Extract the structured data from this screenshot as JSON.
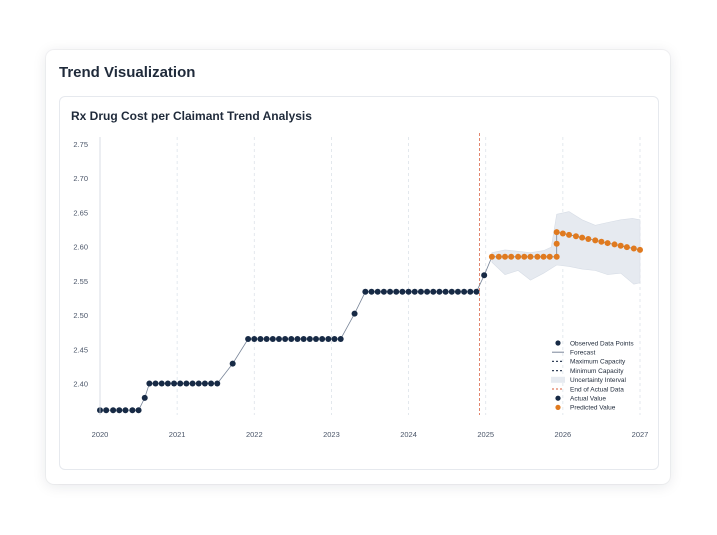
{
  "section_title": "Trend Visualization",
  "chart_data": {
    "type": "line",
    "title": "Rx Drug Cost per Claimant Trend Analysis",
    "xlabel": "",
    "ylabel": "",
    "xlim": [
      2020.0,
      2027.0
    ],
    "ylim": [
      2.355,
      2.755
    ],
    "x_ticks": [
      "2020",
      "2021",
      "2022",
      "2023",
      "2024",
      "2025",
      "2026",
      "2027"
    ],
    "y_ticks": [
      "2.40",
      "2.45",
      "2.50",
      "2.55",
      "2.60",
      "2.65",
      "2.70",
      "2.75"
    ],
    "end_of_actual_x": 2024.92,
    "grid": "vertical dashed",
    "legend_position": "bottom-right",
    "colors": {
      "observed": "#172a45",
      "predicted": "#e07a1f",
      "line": "#7a8699",
      "end_line": "#e07a5f",
      "band": "#e6eaf0"
    },
    "legend": [
      {
        "label": "Observed Data Points",
        "kind": "dot-dark"
      },
      {
        "label": "Forecast",
        "kind": "line"
      },
      {
        "label": "Maximum Capacity",
        "kind": "dash-dark"
      },
      {
        "label": "Minimum Capacity",
        "kind": "dash-dark"
      },
      {
        "label": "Uncertainty Interval",
        "kind": "band"
      },
      {
        "label": "End of Actual Data",
        "kind": "dash-orange"
      },
      {
        "label": "Actual Value",
        "kind": "dot-dark"
      },
      {
        "label": "Predicted Value",
        "kind": "dot-orange"
      }
    ],
    "series": [
      {
        "name": "Actual Value",
        "points": [
          [
            2020.0,
            2.362
          ],
          [
            2020.08,
            2.362
          ],
          [
            2020.17,
            2.362
          ],
          [
            2020.25,
            2.362
          ],
          [
            2020.33,
            2.362
          ],
          [
            2020.42,
            2.362
          ],
          [
            2020.5,
            2.362
          ],
          [
            2020.58,
            2.38
          ],
          [
            2020.64,
            2.401
          ],
          [
            2020.72,
            2.401
          ],
          [
            2020.8,
            2.401
          ],
          [
            2020.88,
            2.401
          ],
          [
            2020.96,
            2.401
          ],
          [
            2021.04,
            2.401
          ],
          [
            2021.12,
            2.401
          ],
          [
            2021.2,
            2.401
          ],
          [
            2021.28,
            2.401
          ],
          [
            2021.36,
            2.401
          ],
          [
            2021.44,
            2.401
          ],
          [
            2021.52,
            2.401
          ],
          [
            2021.72,
            2.43
          ],
          [
            2021.92,
            2.466
          ],
          [
            2022.0,
            2.466
          ],
          [
            2022.08,
            2.466
          ],
          [
            2022.16,
            2.466
          ],
          [
            2022.24,
            2.466
          ],
          [
            2022.32,
            2.466
          ],
          [
            2022.4,
            2.466
          ],
          [
            2022.48,
            2.466
          ],
          [
            2022.56,
            2.466
          ],
          [
            2022.64,
            2.466
          ],
          [
            2022.72,
            2.466
          ],
          [
            2022.8,
            2.466
          ],
          [
            2022.88,
            2.466
          ],
          [
            2022.96,
            2.466
          ],
          [
            2023.04,
            2.466
          ],
          [
            2023.12,
            2.466
          ],
          [
            2023.3,
            2.503
          ],
          [
            2023.44,
            2.535
          ],
          [
            2023.52,
            2.535
          ],
          [
            2023.6,
            2.535
          ],
          [
            2023.68,
            2.535
          ],
          [
            2023.76,
            2.535
          ],
          [
            2023.84,
            2.535
          ],
          [
            2023.92,
            2.535
          ],
          [
            2024.0,
            2.535
          ],
          [
            2024.08,
            2.535
          ],
          [
            2024.16,
            2.535
          ],
          [
            2024.24,
            2.535
          ],
          [
            2024.32,
            2.535
          ],
          [
            2024.4,
            2.535
          ],
          [
            2024.48,
            2.535
          ],
          [
            2024.56,
            2.535
          ],
          [
            2024.64,
            2.535
          ],
          [
            2024.72,
            2.535
          ],
          [
            2024.8,
            2.535
          ],
          [
            2024.88,
            2.535
          ],
          [
            2024.98,
            2.559
          ]
        ]
      },
      {
        "name": "Predicted Value",
        "points": [
          [
            2025.08,
            2.586
          ],
          [
            2025.17,
            2.586
          ],
          [
            2025.25,
            2.586
          ],
          [
            2025.33,
            2.586
          ],
          [
            2025.42,
            2.586
          ],
          [
            2025.5,
            2.586
          ],
          [
            2025.58,
            2.586
          ],
          [
            2025.67,
            2.586
          ],
          [
            2025.75,
            2.586
          ],
          [
            2025.83,
            2.586
          ],
          [
            2025.92,
            2.586
          ],
          [
            2025.92,
            2.605
          ],
          [
            2025.92,
            2.622
          ],
          [
            2026.0,
            2.62
          ],
          [
            2026.08,
            2.618
          ],
          [
            2026.17,
            2.616
          ],
          [
            2026.25,
            2.614
          ],
          [
            2026.33,
            2.612
          ],
          [
            2026.42,
            2.61
          ],
          [
            2026.5,
            2.608
          ],
          [
            2026.58,
            2.606
          ],
          [
            2026.67,
            2.604
          ],
          [
            2026.75,
            2.602
          ],
          [
            2026.83,
            2.6
          ],
          [
            2026.92,
            2.598
          ],
          [
            2027.0,
            2.596
          ]
        ]
      }
    ],
    "uncertainty_upper": [
      [
        2025.08,
        2.592
      ],
      [
        2025.25,
        2.596
      ],
      [
        2025.42,
        2.594
      ],
      [
        2025.58,
        2.592
      ],
      [
        2025.75,
        2.595
      ],
      [
        2025.85,
        2.6
      ],
      [
        2025.92,
        2.648
      ],
      [
        2026.08,
        2.652
      ],
      [
        2026.25,
        2.64
      ],
      [
        2026.42,
        2.632
      ],
      [
        2026.58,
        2.636
      ],
      [
        2026.75,
        2.64
      ],
      [
        2026.9,
        2.642
      ],
      [
        2027.0,
        2.64
      ]
    ],
    "uncertainty_lower": [
      [
        2027.0,
        2.548
      ],
      [
        2026.92,
        2.546
      ],
      [
        2026.75,
        2.562
      ],
      [
        2026.58,
        2.56
      ],
      [
        2026.42,
        2.566
      ],
      [
        2026.25,
        2.568
      ],
      [
        2026.08,
        2.572
      ],
      [
        2025.92,
        2.574
      ],
      [
        2025.75,
        2.562
      ],
      [
        2025.58,
        2.552
      ],
      [
        2025.42,
        2.566
      ],
      [
        2025.25,
        2.56
      ],
      [
        2025.08,
        2.578
      ]
    ]
  }
}
